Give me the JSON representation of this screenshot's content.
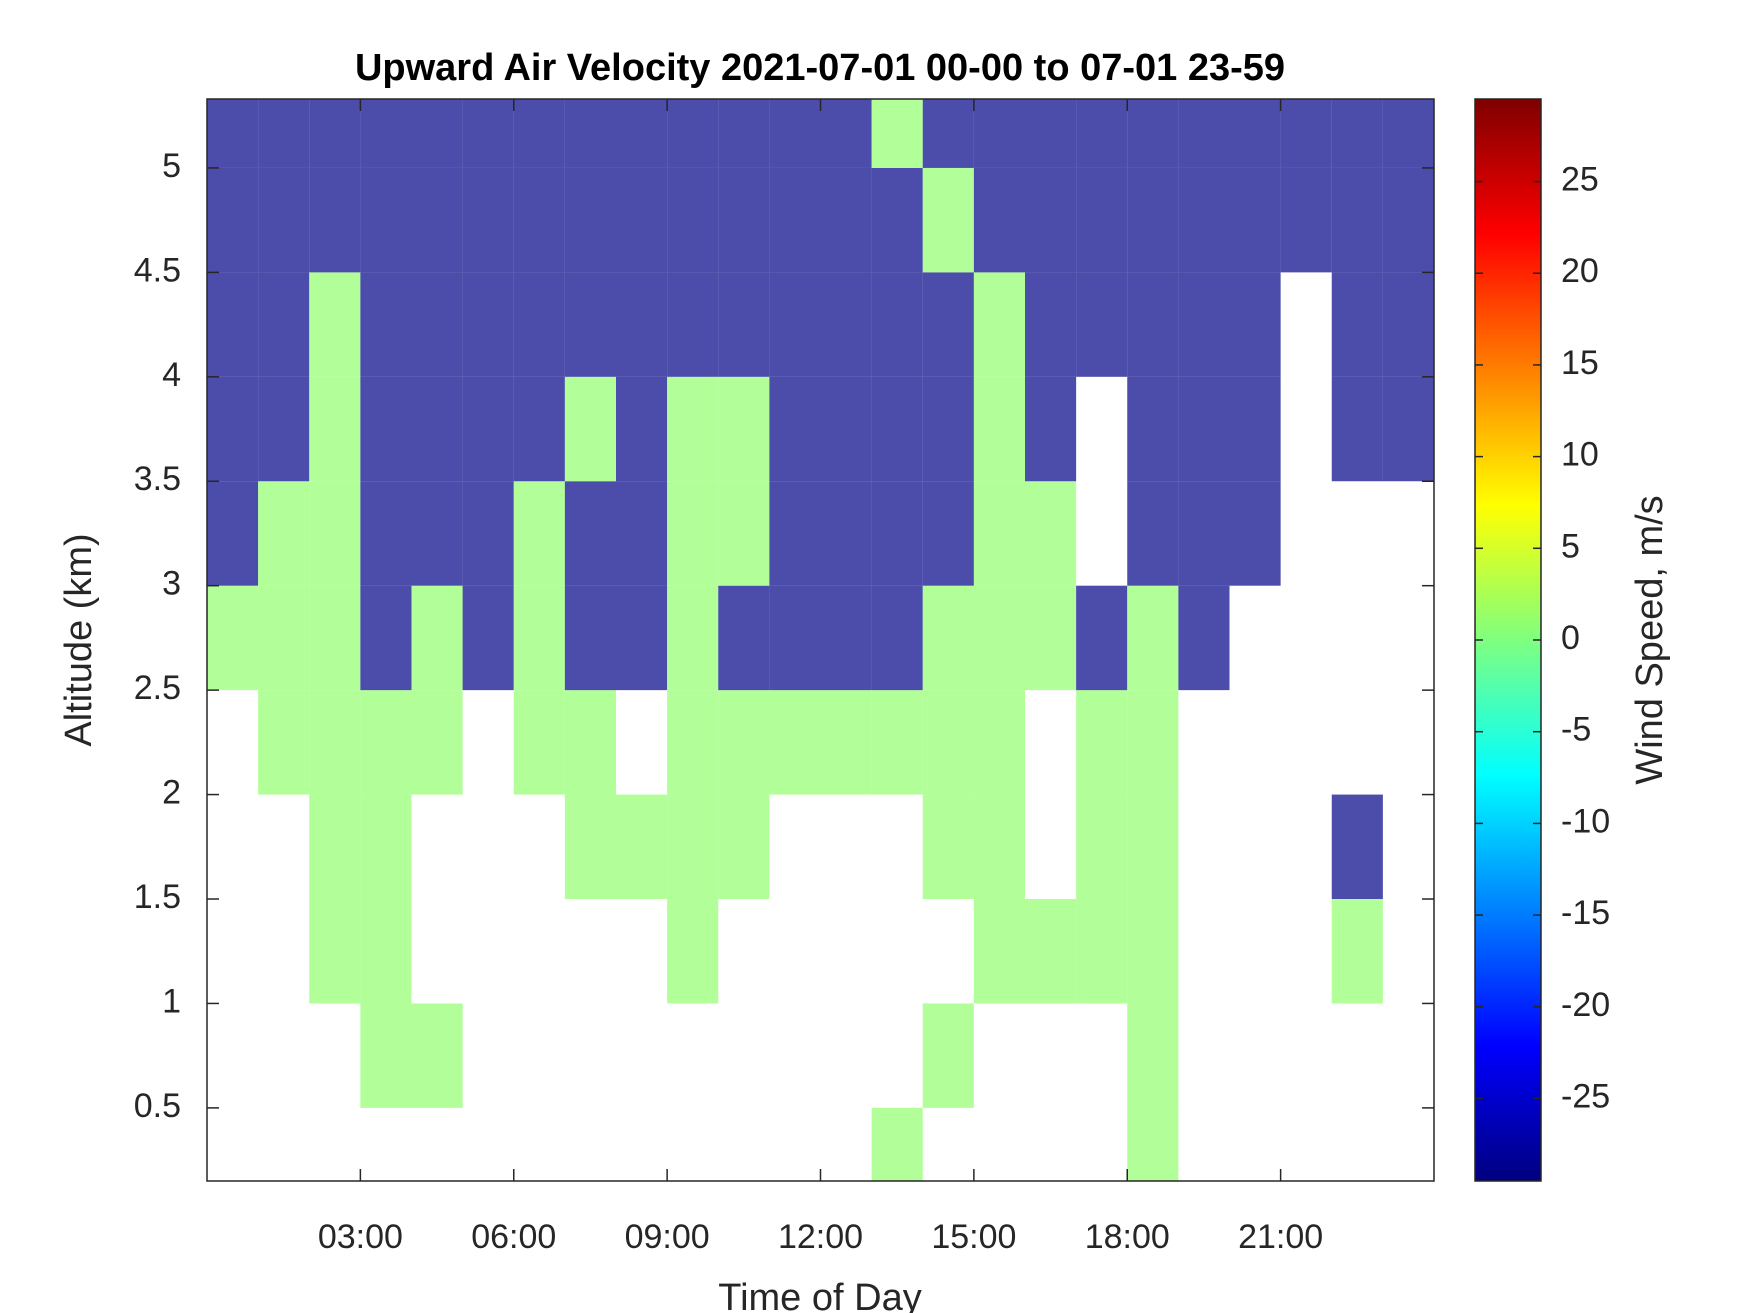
{
  "chart_data": {
    "type": "heatmap",
    "title": "Upward Air Velocity 2021-07-01 00-00 to 07-01 23-59",
    "x_label": "Time of Day",
    "y_label": "Altitude (km)",
    "colorbar_label": "Wind Speed, m/s",
    "colormap": "jet",
    "x_edges": [
      0,
      1,
      2,
      3,
      4,
      5,
      6,
      7,
      8,
      9,
      10,
      11,
      12,
      13,
      14,
      15,
      16,
      17,
      18,
      19,
      20,
      21,
      22,
      23,
      24
    ],
    "y_edges": [
      0.15,
      0.5,
      1.0,
      1.5,
      2.0,
      2.5,
      3.0,
      3.5,
      4.0,
      4.5,
      5.0,
      5.33
    ],
    "values": [
      [
        null,
        null,
        null,
        null,
        null,
        null,
        null,
        null,
        null,
        null,
        null,
        null,
        null,
        1,
        null,
        null,
        null,
        null,
        1,
        null,
        null,
        null,
        null,
        null
      ],
      [
        null,
        null,
        null,
        1,
        1,
        null,
        null,
        null,
        null,
        null,
        null,
        null,
        null,
        null,
        1,
        null,
        null,
        null,
        1,
        null,
        null,
        null,
        null,
        null
      ],
      [
        null,
        null,
        1,
        1,
        null,
        null,
        null,
        null,
        null,
        1,
        null,
        null,
        null,
        null,
        null,
        1,
        1,
        1,
        1,
        null,
        null,
        null,
        1,
        null
      ],
      [
        null,
        null,
        1,
        1,
        null,
        null,
        null,
        1,
        1,
        1,
        1,
        null,
        null,
        null,
        1,
        1,
        null,
        1,
        1,
        null,
        null,
        null,
        -29,
        null
      ],
      [
        null,
        1,
        1,
        1,
        1,
        null,
        1,
        1,
        null,
        1,
        1,
        1,
        1,
        1,
        1,
        1,
        null,
        1,
        1,
        null,
        null,
        null,
        null,
        null
      ],
      [
        1,
        1,
        1,
        -29,
        1,
        -29,
        1,
        -29,
        -29,
        1,
        -29,
        -29,
        -29,
        -29,
        1,
        1,
        1,
        -29,
        1,
        -29,
        null,
        null,
        null,
        null
      ],
      [
        -29,
        1,
        1,
        -29,
        -29,
        -29,
        1,
        -29,
        -29,
        1,
        1,
        -29,
        -29,
        -29,
        -29,
        1,
        1,
        null,
        -29,
        -29,
        -29,
        null,
        null,
        null
      ],
      [
        -29,
        -29,
        1,
        -29,
        -29,
        -29,
        -29,
        1,
        -29,
        1,
        1,
        -29,
        -29,
        -29,
        -29,
        1,
        -29,
        null,
        -29,
        -29,
        -29,
        null,
        -29,
        -29
      ],
      [
        -29,
        -29,
        1,
        -29,
        -29,
        -29,
        -29,
        -29,
        -29,
        -29,
        -29,
        -29,
        -29,
        -29,
        -29,
        1,
        -29,
        -29,
        -29,
        -29,
        -29,
        null,
        -29,
        -29
      ],
      [
        -29,
        -29,
        -29,
        -29,
        -29,
        -29,
        -29,
        -29,
        -29,
        -29,
        -29,
        -29,
        -29,
        -29,
        1,
        -29,
        -29,
        -29,
        -29,
        -29,
        -29,
        -29,
        -29,
        -29
      ],
      [
        -29,
        -29,
        -29,
        -29,
        -29,
        -29,
        -29,
        -29,
        -29,
        -29,
        -29,
        -29,
        -29,
        1,
        -29,
        -29,
        -29,
        -29,
        -29,
        -29,
        -29,
        -29,
        -29,
        -29
      ]
    ],
    "xlim": [
      0,
      24
    ],
    "xticks": [
      {
        "value": 3,
        "label": "03:00"
      },
      {
        "value": 6,
        "label": "06:00"
      },
      {
        "value": 9,
        "label": "09:00"
      },
      {
        "value": 12,
        "label": "12:00"
      },
      {
        "value": 15,
        "label": "15:00"
      },
      {
        "value": 18,
        "label": "18:00"
      },
      {
        "value": 21,
        "label": "21:00"
      }
    ],
    "ylim": [
      0.15,
      5.33
    ],
    "yticks": [
      0.5,
      1,
      1.5,
      2,
      2.5,
      3,
      3.5,
      4,
      4.5,
      5
    ],
    "clim": [
      -29.5,
      29.5
    ],
    "cticks": [
      -25,
      -20,
      -15,
      -10,
      -5,
      0,
      5,
      10,
      15,
      20,
      25
    ]
  }
}
